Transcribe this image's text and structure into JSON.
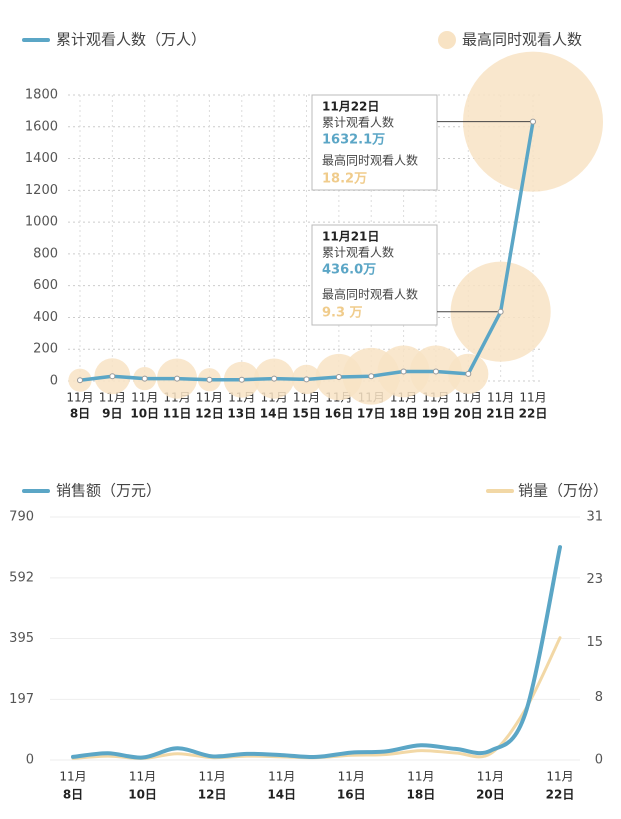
{
  "chart_data": [
    {
      "type": "line",
      "categories": [
        [
          "11月",
          "8日"
        ],
        [
          "11月",
          "9日"
        ],
        [
          "11月",
          "10日"
        ],
        [
          "11月",
          "11日"
        ],
        [
          "11月",
          "12日"
        ],
        [
          "11月",
          "13日"
        ],
        [
          "11月",
          "14日"
        ],
        [
          "11月",
          "15日"
        ],
        [
          "11月",
          "16日"
        ],
        [
          "11月",
          "17日"
        ],
        [
          "11月",
          "18日"
        ],
        [
          "11月",
          "19日"
        ],
        [
          "11月",
          "20日"
        ],
        [
          "11月",
          "21日"
        ],
        [
          "11月",
          "22日"
        ]
      ],
      "series": [
        {
          "name": "累计观看人数（万人）",
          "color": "#5ba6c6",
          "values": [
            5,
            30,
            15,
            15,
            8,
            8,
            15,
            10,
            25,
            30,
            60,
            60,
            45,
            436.0,
            1632.1
          ]
        },
        {
          "name": "最高同时观看人数",
          "color": "#f8e3c4",
          "kind": "bubble",
          "values": [
            0.5,
            1.2,
            0.5,
            1.5,
            0.5,
            1.2,
            1.5,
            0.8,
            2,
            3,
            2.5,
            2.5,
            1.5,
            9.3,
            18.2
          ]
        }
      ],
      "annotations": [
        {
          "date": "11月21日",
          "label1": "累计观看人数",
          "value1": "436.0万",
          "label2": "最高同时观看人数",
          "value2": "9.3 万"
        },
        {
          "date": "11月22日",
          "label1": "累计观看人数",
          "value1": "1632.1万",
          "label2": "最高同时观看人数",
          "value2": "18.2万"
        }
      ],
      "ylim": [
        0,
        1800
      ],
      "yticks": [
        0,
        200,
        400,
        600,
        800,
        1000,
        1200,
        1400,
        1600,
        1800
      ],
      "grid": true
    },
    {
      "type": "line",
      "categories": [
        [
          "11月",
          "8日"
        ],
        null,
        [
          "11月",
          "10日"
        ],
        null,
        [
          "11月",
          "12日"
        ],
        null,
        [
          "11月",
          "14日"
        ],
        null,
        [
          "11月",
          "16日"
        ],
        null,
        [
          "11月",
          "18日"
        ],
        null,
        [
          "11月",
          "20日"
        ],
        null,
        [
          "11月",
          "22日"
        ]
      ],
      "series": [
        {
          "name": "销售额（万元）",
          "color": "#5ba6c6",
          "values": [
            10,
            22,
            8,
            38,
            12,
            20,
            16,
            10,
            24,
            28,
            48,
            36,
            30,
            150,
            692
          ]
        },
        {
          "name": "销量（万份）",
          "color": "#f2d8a6",
          "axis": "y2",
          "values": [
            0.2,
            0.5,
            0.2,
            0.8,
            0.3,
            0.5,
            0.4,
            0.3,
            0.6,
            0.7,
            1.2,
            0.9,
            0.8,
            6.4,
            15.6
          ]
        }
      ],
      "ylim": [
        0,
        790
      ],
      "yticks": [
        0,
        197,
        395,
        592,
        790
      ],
      "y2lim": [
        0,
        31
      ],
      "y2ticks": [
        0,
        8,
        15,
        23,
        31
      ],
      "grid": true
    }
  ]
}
